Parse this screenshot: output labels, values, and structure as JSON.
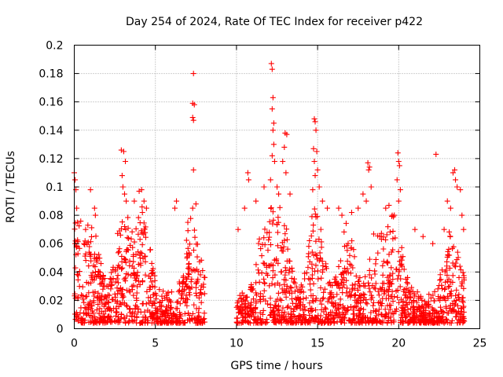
{
  "chart_data": {
    "type": "scatter",
    "title": "Day 254 of 2024, Rate Of TEC Index for receiver p422",
    "xlabel": "GPS time / hours",
    "ylabel": "ROTI / TECUs",
    "xlim": [
      0,
      25
    ],
    "ylim": [
      0,
      0.2
    ],
    "xticks": [
      0,
      5,
      10,
      15,
      20,
      25
    ],
    "xtick_labels": [
      "0",
      "5",
      "10",
      "15",
      "20",
      "25"
    ],
    "yticks": [
      0,
      0.02,
      0.04,
      0.06,
      0.08,
      0.1,
      0.12,
      0.14,
      0.16,
      0.18,
      0.2
    ],
    "ytick_labels": [
      "0",
      "0.02",
      "0.04",
      "0.06",
      "0.08",
      "0.1",
      "0.12",
      "0.14",
      "0.16",
      "0.18",
      "0.2"
    ],
    "grid": true,
    "marker": "plus",
    "color": "#ff0000",
    "gaps": [
      [
        8.05,
        10.0
      ]
    ],
    "series": [
      {
        "points": [
          [
            0.0,
            0.11
          ],
          [
            0.05,
            0.105
          ],
          [
            0.1,
            0.098
          ],
          [
            0.15,
            0.085
          ],
          [
            0.2,
            0.075
          ],
          [
            0.05,
            0.06
          ],
          [
            0.15,
            0.058
          ],
          [
            0.6,
            0.06
          ],
          [
            0.7,
            0.07
          ],
          [
            1.0,
            0.098
          ],
          [
            1.25,
            0.085
          ],
          [
            1.3,
            0.08
          ],
          [
            2.9,
            0.126
          ],
          [
            3.05,
            0.125
          ],
          [
            3.15,
            0.118
          ],
          [
            2.95,
            0.108
          ],
          [
            3.0,
            0.1
          ],
          [
            3.1,
            0.095
          ],
          [
            3.2,
            0.09
          ],
          [
            3.7,
            0.09
          ],
          [
            4.0,
            0.097
          ],
          [
            4.15,
            0.098
          ],
          [
            4.3,
            0.09
          ],
          [
            4.45,
            0.085
          ],
          [
            4.2,
            0.082
          ],
          [
            6.2,
            0.085
          ],
          [
            6.3,
            0.09
          ],
          [
            7.0,
            0.075
          ],
          [
            7.3,
            0.085
          ],
          [
            7.5,
            0.088
          ],
          [
            7.35,
            0.18
          ],
          [
            7.3,
            0.159
          ],
          [
            7.4,
            0.158
          ],
          [
            7.3,
            0.149
          ],
          [
            7.35,
            0.147
          ],
          [
            7.35,
            0.112
          ],
          [
            10.1,
            0.07
          ],
          [
            10.5,
            0.085
          ],
          [
            10.7,
            0.11
          ],
          [
            10.75,
            0.105
          ],
          [
            11.2,
            0.09
          ],
          [
            11.7,
            0.1
          ],
          [
            12.15,
            0.187
          ],
          [
            12.2,
            0.183
          ],
          [
            12.25,
            0.163
          ],
          [
            12.2,
            0.155
          ],
          [
            12.3,
            0.145
          ],
          [
            12.25,
            0.14
          ],
          [
            12.3,
            0.13
          ],
          [
            12.2,
            0.122
          ],
          [
            12.35,
            0.118
          ],
          [
            12.1,
            0.105
          ],
          [
            12.5,
            0.1
          ],
          [
            12.6,
            0.095
          ],
          [
            13.0,
            0.138
          ],
          [
            13.1,
            0.137
          ],
          [
            12.95,
            0.128
          ],
          [
            12.85,
            0.118
          ],
          [
            13.05,
            0.11
          ],
          [
            13.3,
            0.095
          ],
          [
            14.8,
            0.148
          ],
          [
            14.85,
            0.146
          ],
          [
            14.9,
            0.14
          ],
          [
            14.75,
            0.127
          ],
          [
            14.95,
            0.125
          ],
          [
            14.8,
            0.118
          ],
          [
            15.0,
            0.112
          ],
          [
            14.85,
            0.108
          ],
          [
            15.1,
            0.1
          ],
          [
            14.7,
            0.098
          ],
          [
            15.3,
            0.09
          ],
          [
            15.6,
            0.085
          ],
          [
            16.3,
            0.085
          ],
          [
            16.5,
            0.08
          ],
          [
            17.1,
            0.082
          ],
          [
            17.5,
            0.085
          ],
          [
            17.8,
            0.095
          ],
          [
            18.1,
            0.117
          ],
          [
            18.2,
            0.114
          ],
          [
            18.15,
            0.112
          ],
          [
            18.3,
            0.1
          ],
          [
            18.0,
            0.09
          ],
          [
            19.2,
            0.085
          ],
          [
            19.4,
            0.087
          ],
          [
            19.6,
            0.08
          ],
          [
            19.95,
            0.124
          ],
          [
            20.0,
            0.118
          ],
          [
            20.05,
            0.115
          ],
          [
            19.9,
            0.105
          ],
          [
            20.1,
            0.098
          ],
          [
            20.0,
            0.09
          ],
          [
            21.0,
            0.07
          ],
          [
            21.5,
            0.065
          ],
          [
            22.3,
            0.123
          ],
          [
            22.1,
            0.06
          ],
          [
            22.8,
            0.07
          ],
          [
            23.0,
            0.09
          ],
          [
            23.2,
            0.085
          ],
          [
            23.35,
            0.11
          ],
          [
            23.45,
            0.112
          ],
          [
            23.5,
            0.105
          ],
          [
            23.6,
            0.1
          ],
          [
            23.8,
            0.098
          ],
          [
            23.9,
            0.08
          ],
          [
            24.0,
            0.07
          ]
        ]
      }
    ]
  }
}
